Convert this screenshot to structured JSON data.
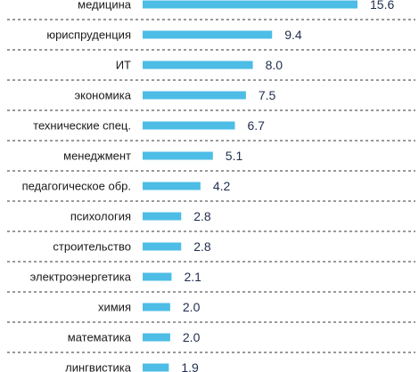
{
  "chart_data": {
    "type": "bar",
    "orientation": "horizontal",
    "categories": [
      "медицина",
      "юриспруденция",
      "ИТ",
      "экономика",
      "технические спец.",
      "менеджмент",
      "педагогическое обр.",
      "психология",
      "строительство",
      "электроэнергетика",
      "химия",
      "математика",
      "лингвистика"
    ],
    "values": [
      15.6,
      9.4,
      8.0,
      7.5,
      6.7,
      5.1,
      4.2,
      2.8,
      2.8,
      2.1,
      2.0,
      2.0,
      1.9
    ],
    "value_labels": [
      "15.6",
      "9.4",
      "8.0",
      "7.5",
      "6.7",
      "5.1",
      "4.2",
      "2.8",
      "2.8",
      "2.1",
      "2.0",
      "2.0",
      "1.9"
    ],
    "xlim": [
      0,
      15.6
    ],
    "grid": true,
    "bar_color": "#4dbde6",
    "grid_color": "#333333",
    "label_color": "#1f2d4d"
  }
}
